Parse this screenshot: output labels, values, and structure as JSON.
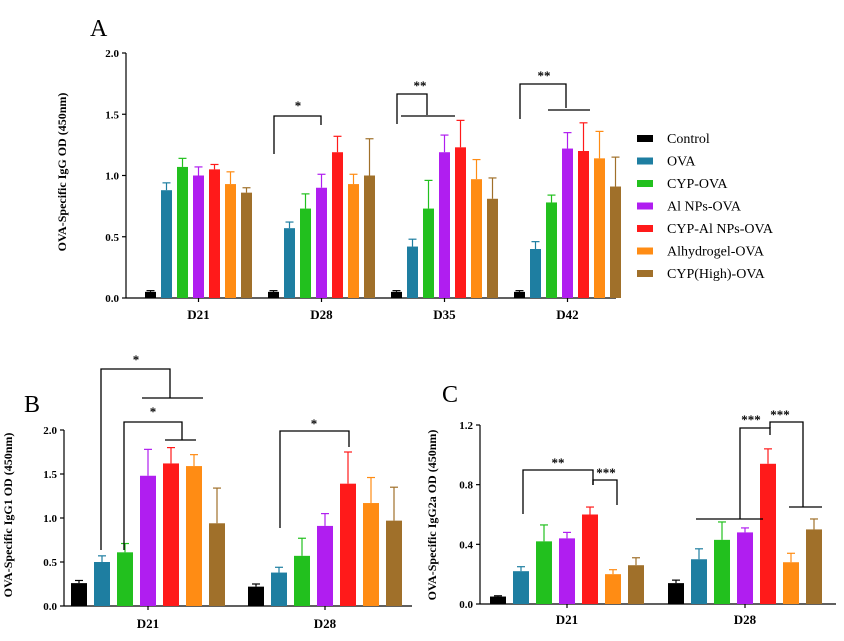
{
  "colors": {
    "Control": "#000000",
    "OVA": "#1e7ea1",
    "CYP-OVA": "#22c01e",
    "Al NPs-OVA": "#b01ef0",
    "CYP-Al NPs-OVA": "#ff1a1a",
    "Alhydrogel-OVA": "#ff8c14",
    "CYP(High)-OVA": "#a0702a"
  },
  "legend": [
    "Control",
    "OVA",
    "CYP-OVA",
    "Al NPs-OVA",
    "CYP-Al NPs-OVA",
    "Alhydrogel-OVA",
    "CYP(High)-OVA"
  ],
  "chart_data": [
    {
      "panel": "A",
      "type": "bar",
      "ylabel": "OVA-Specific IgG OD (450nm)",
      "ylim": [
        0,
        2.0
      ],
      "yticks": [
        "0.0",
        "0.5",
        "1.0",
        "1.5",
        "2.0"
      ],
      "categories": [
        "D21",
        "D28",
        "D35",
        "D42"
      ],
      "series": [
        {
          "name": "Control",
          "values": [
            0.05,
            0.05,
            0.05,
            0.05
          ],
          "errors": [
            0.01,
            0.01,
            0.01,
            0.01
          ]
        },
        {
          "name": "OVA",
          "values": [
            0.88,
            0.57,
            0.42,
            0.4
          ],
          "errors": [
            0.06,
            0.05,
            0.06,
            0.06
          ]
        },
        {
          "name": "CYP-OVA",
          "values": [
            1.07,
            0.73,
            0.73,
            0.78
          ],
          "errors": [
            0.07,
            0.12,
            0.23,
            0.06
          ]
        },
        {
          "name": "Al NPs-OVA",
          "values": [
            1.0,
            0.9,
            1.19,
            1.22
          ],
          "errors": [
            0.07,
            0.11,
            0.14,
            0.13
          ]
        },
        {
          "name": "CYP-Al NPs-OVA",
          "values": [
            1.05,
            1.19,
            1.23,
            1.2
          ],
          "errors": [
            0.04,
            0.13,
            0.22,
            0.23
          ]
        },
        {
          "name": "Alhydrogel-OVA",
          "values": [
            0.93,
            0.93,
            0.97,
            1.14
          ],
          "errors": [
            0.1,
            0.08,
            0.16,
            0.22
          ]
        },
        {
          "name": "CYP(High)-OVA",
          "values": [
            0.86,
            1.0,
            0.81,
            0.91
          ],
          "errors": [
            0.04,
            0.3,
            0.17,
            0.24
          ]
        }
      ],
      "significance": [
        {
          "label": "*",
          "category": "D28"
        },
        {
          "label": "**",
          "category": "D35"
        },
        {
          "label": "**",
          "category": "D42"
        }
      ]
    },
    {
      "panel": "B",
      "type": "bar",
      "ylabel": "OVA-Specific IgG1 OD (450nm)",
      "ylim": [
        0,
        2.0
      ],
      "yticks": [
        "0.0",
        "0.5",
        "1.0",
        "1.5",
        "2.0"
      ],
      "categories": [
        "D21",
        "D28"
      ],
      "series": [
        {
          "name": "Control",
          "values": [
            0.26,
            0.22
          ],
          "errors": [
            0.03,
            0.03
          ]
        },
        {
          "name": "OVA",
          "values": [
            0.5,
            0.38
          ],
          "errors": [
            0.07,
            0.06
          ]
        },
        {
          "name": "CYP-OVA",
          "values": [
            0.61,
            0.57
          ],
          "errors": [
            0.1,
            0.2
          ]
        },
        {
          "name": "Al NPs-OVA",
          "values": [
            1.48,
            0.91
          ],
          "errors": [
            0.3,
            0.14
          ]
        },
        {
          "name": "CYP-Al NPs-OVA",
          "values": [
            1.62,
            1.39
          ],
          "errors": [
            0.18,
            0.36
          ]
        },
        {
          "name": "Alhydrogel-OVA",
          "values": [
            1.59,
            1.17
          ],
          "errors": [
            0.13,
            0.29
          ]
        },
        {
          "name": "CYP(High)-OVA",
          "values": [
            0.94,
            0.97
          ],
          "errors": [
            0.4,
            0.38
          ]
        }
      ],
      "significance": [
        {
          "label": "*",
          "category": "D21"
        },
        {
          "label": "*",
          "category": "D21"
        },
        {
          "label": "*",
          "category": "D28"
        }
      ]
    },
    {
      "panel": "C",
      "type": "bar",
      "ylabel": "OVA-Specific IgG2a OD (450nm)",
      "ylim": [
        0,
        1.2
      ],
      "yticks": [
        "0.0",
        "0.4",
        "0.8",
        "1.2"
      ],
      "categories": [
        "D21",
        "D28"
      ],
      "series": [
        {
          "name": "Control",
          "values": [
            0.05,
            0.14
          ],
          "errors": [
            0.005,
            0.02
          ]
        },
        {
          "name": "OVA",
          "values": [
            0.22,
            0.3
          ],
          "errors": [
            0.03,
            0.07
          ]
        },
        {
          "name": "CYP-OVA",
          "values": [
            0.42,
            0.43
          ],
          "errors": [
            0.11,
            0.12
          ]
        },
        {
          "name": "Al NPs-OVA",
          "values": [
            0.44,
            0.48
          ],
          "errors": [
            0.04,
            0.03
          ]
        },
        {
          "name": "CYP-Al NPs-OVA",
          "values": [
            0.6,
            0.94
          ],
          "errors": [
            0.05,
            0.1
          ]
        },
        {
          "name": "Alhydrogel-OVA",
          "values": [
            0.2,
            0.28
          ],
          "errors": [
            0.03,
            0.06
          ]
        },
        {
          "name": "CYP(High)-OVA",
          "values": [
            0.26,
            0.5
          ],
          "errors": [
            0.05,
            0.07
          ]
        }
      ],
      "significance": [
        {
          "label": "**",
          "category": "D21"
        },
        {
          "label": "***",
          "category": "D21"
        },
        {
          "label": "***",
          "category": "D28"
        },
        {
          "label": "***",
          "category": "D28"
        }
      ]
    }
  ]
}
